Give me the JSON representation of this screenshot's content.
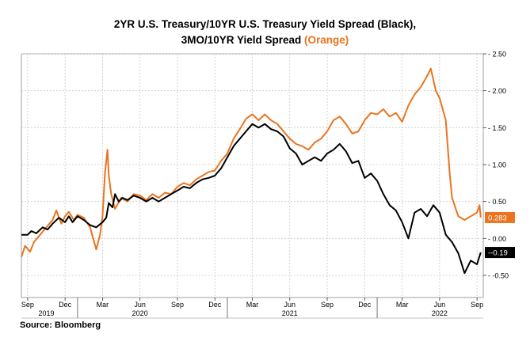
{
  "title": {
    "line1": "2YR U.S. Treasury/10YR U.S. Treasury Yield Spread (Black),",
    "line2_prefix": "3MO/10YR Yield Spread",
    "line2_highlight": "(Orange)"
  },
  "source": "Source: Bloomberg",
  "colors": {
    "series_black": "#000000",
    "series_orange": "#ea7420",
    "grid": "#c8c8c8",
    "label_orange_bg": "#ea7420",
    "label_black_bg": "#000000"
  },
  "chart_data": {
    "type": "line",
    "ylim": [
      -0.8,
      2.5
    ],
    "yticks": [
      2.5,
      2.0,
      1.5,
      1.0,
      0.5,
      0.0,
      -0.5
    ],
    "ytick_labels": [
      "2.50",
      "2.00",
      "1.50",
      "1.00",
      "0.50",
      "0.00",
      "-0.50"
    ],
    "x_month_ticks": [
      {
        "t": 0,
        "label": "Sep"
      },
      {
        "t": 3,
        "label": "Dec"
      },
      {
        "t": 6,
        "label": "Mar"
      },
      {
        "t": 9,
        "label": "Jun"
      },
      {
        "t": 12,
        "label": "Sep"
      },
      {
        "t": 15,
        "label": "Dec"
      },
      {
        "t": 18,
        "label": "Mar"
      },
      {
        "t": 21,
        "label": "Jun"
      },
      {
        "t": 24,
        "label": "Sep"
      },
      {
        "t": 27,
        "label": "Dec"
      },
      {
        "t": 30,
        "label": "Mar"
      },
      {
        "t": 33,
        "label": "Jun"
      },
      {
        "t": 36,
        "label": "Sep"
      }
    ],
    "x_year_labels": [
      {
        "t": 1.5,
        "label": "2019"
      },
      {
        "t": 9,
        "label": "2020"
      },
      {
        "t": 21,
        "label": "2021"
      },
      {
        "t": 33,
        "label": "2022"
      }
    ],
    "year_separators": [
      4,
      16,
      28
    ],
    "xlim": [
      -0.5,
      36.5
    ],
    "series": [
      {
        "name": "2YR U.S. Treasury/10YR U.S. Treasury Yield Spread",
        "color": "#000000",
        "last_value_label": "-0.19",
        "points": [
          [
            -0.5,
            0.05
          ],
          [
            0.0,
            0.05
          ],
          [
            0.3,
            0.1
          ],
          [
            0.7,
            0.07
          ],
          [
            1.2,
            0.15
          ],
          [
            1.6,
            0.12
          ],
          [
            2.0,
            0.2
          ],
          [
            2.5,
            0.28
          ],
          [
            3.0,
            0.22
          ],
          [
            3.3,
            0.3
          ],
          [
            3.6,
            0.22
          ],
          [
            4.0,
            0.3
          ],
          [
            4.5,
            0.25
          ],
          [
            5.0,
            0.18
          ],
          [
            5.5,
            0.15
          ],
          [
            6.0,
            0.22
          ],
          [
            6.3,
            0.28
          ],
          [
            6.5,
            0.48
          ],
          [
            6.8,
            0.42
          ],
          [
            7.0,
            0.6
          ],
          [
            7.3,
            0.5
          ],
          [
            7.6,
            0.55
          ],
          [
            8.0,
            0.52
          ],
          [
            8.5,
            0.58
          ],
          [
            9.0,
            0.55
          ],
          [
            9.5,
            0.5
          ],
          [
            10.0,
            0.55
          ],
          [
            10.5,
            0.5
          ],
          [
            11.0,
            0.55
          ],
          [
            11.5,
            0.6
          ],
          [
            12.0,
            0.65
          ],
          [
            12.5,
            0.7
          ],
          [
            13.0,
            0.68
          ],
          [
            13.5,
            0.75
          ],
          [
            14.0,
            0.8
          ],
          [
            14.5,
            0.82
          ],
          [
            15.0,
            0.85
          ],
          [
            15.5,
            0.95
          ],
          [
            16.0,
            1.1
          ],
          [
            16.5,
            1.25
          ],
          [
            17.0,
            1.35
          ],
          [
            17.5,
            1.45
          ],
          [
            18.0,
            1.55
          ],
          [
            18.5,
            1.5
          ],
          [
            19.0,
            1.55
          ],
          [
            19.5,
            1.48
          ],
          [
            20.0,
            1.45
          ],
          [
            20.5,
            1.38
          ],
          [
            21.0,
            1.22
          ],
          [
            21.5,
            1.15
          ],
          [
            22.0,
            1.0
          ],
          [
            22.5,
            1.05
          ],
          [
            23.0,
            1.1
          ],
          [
            23.5,
            1.05
          ],
          [
            24.0,
            1.15
          ],
          [
            24.5,
            1.2
          ],
          [
            25.0,
            1.28
          ],
          [
            25.5,
            1.18
          ],
          [
            26.0,
            1.02
          ],
          [
            26.5,
            1.05
          ],
          [
            27.0,
            0.82
          ],
          [
            27.5,
            0.88
          ],
          [
            28.0,
            0.78
          ],
          [
            28.5,
            0.6
          ],
          [
            29.0,
            0.45
          ],
          [
            29.5,
            0.38
          ],
          [
            30.0,
            0.22
          ],
          [
            30.5,
            0.0
          ],
          [
            31.0,
            0.35
          ],
          [
            31.5,
            0.4
          ],
          [
            32.0,
            0.3
          ],
          [
            32.5,
            0.45
          ],
          [
            33.0,
            0.35
          ],
          [
            33.5,
            0.05
          ],
          [
            34.0,
            -0.05
          ],
          [
            34.5,
            -0.2
          ],
          [
            35.0,
            -0.47
          ],
          [
            35.5,
            -0.3
          ],
          [
            36.0,
            -0.35
          ],
          [
            36.3,
            -0.19
          ]
        ]
      },
      {
        "name": "3MO/10YR Yield Spread",
        "color": "#ea7420",
        "last_value_label": "0.283",
        "points": [
          [
            -0.5,
            -0.25
          ],
          [
            -0.2,
            -0.1
          ],
          [
            0.2,
            -0.18
          ],
          [
            0.5,
            -0.05
          ],
          [
            1.0,
            0.05
          ],
          [
            1.5,
            0.15
          ],
          [
            2.0,
            0.25
          ],
          [
            2.3,
            0.38
          ],
          [
            2.7,
            0.2
          ],
          [
            3.0,
            0.3
          ],
          [
            3.3,
            0.36
          ],
          [
            3.7,
            0.25
          ],
          [
            4.0,
            0.32
          ],
          [
            4.5,
            0.28
          ],
          [
            5.0,
            0.15
          ],
          [
            5.5,
            -0.15
          ],
          [
            5.8,
            0.05
          ],
          [
            6.0,
            0.3
          ],
          [
            6.2,
            0.9
          ],
          [
            6.4,
            1.2
          ],
          [
            6.5,
            0.85
          ],
          [
            6.7,
            0.6
          ],
          [
            7.0,
            0.4
          ],
          [
            7.5,
            0.55
          ],
          [
            8.0,
            0.5
          ],
          [
            8.5,
            0.6
          ],
          [
            9.0,
            0.58
          ],
          [
            9.5,
            0.52
          ],
          [
            10.0,
            0.6
          ],
          [
            10.5,
            0.55
          ],
          [
            11.0,
            0.62
          ],
          [
            11.5,
            0.6
          ],
          [
            12.0,
            0.7
          ],
          [
            12.5,
            0.75
          ],
          [
            13.0,
            0.72
          ],
          [
            13.5,
            0.8
          ],
          [
            14.0,
            0.85
          ],
          [
            14.5,
            0.9
          ],
          [
            15.0,
            0.92
          ],
          [
            15.5,
            1.05
          ],
          [
            16.0,
            1.15
          ],
          [
            16.5,
            1.35
          ],
          [
            17.0,
            1.48
          ],
          [
            17.5,
            1.62
          ],
          [
            18.0,
            1.68
          ],
          [
            18.5,
            1.6
          ],
          [
            19.0,
            1.68
          ],
          [
            19.5,
            1.6
          ],
          [
            20.0,
            1.55
          ],
          [
            20.5,
            1.45
          ],
          [
            21.0,
            1.35
          ],
          [
            21.5,
            1.28
          ],
          [
            22.0,
            1.25
          ],
          [
            22.5,
            1.2
          ],
          [
            23.0,
            1.3
          ],
          [
            23.5,
            1.35
          ],
          [
            24.0,
            1.45
          ],
          [
            24.5,
            1.6
          ],
          [
            25.0,
            1.65
          ],
          [
            25.5,
            1.55
          ],
          [
            26.0,
            1.42
          ],
          [
            26.5,
            1.45
          ],
          [
            27.0,
            1.6
          ],
          [
            27.5,
            1.7
          ],
          [
            28.0,
            1.68
          ],
          [
            28.5,
            1.75
          ],
          [
            29.0,
            1.65
          ],
          [
            29.5,
            1.7
          ],
          [
            30.0,
            1.58
          ],
          [
            30.5,
            1.8
          ],
          [
            31.0,
            1.95
          ],
          [
            31.5,
            2.05
          ],
          [
            32.0,
            2.2
          ],
          [
            32.3,
            2.3
          ],
          [
            32.7,
            2.0
          ],
          [
            33.0,
            1.9
          ],
          [
            33.5,
            1.6
          ],
          [
            33.8,
            0.9
          ],
          [
            34.0,
            0.55
          ],
          [
            34.5,
            0.3
          ],
          [
            35.0,
            0.25
          ],
          [
            35.5,
            0.3
          ],
          [
            36.0,
            0.35
          ],
          [
            36.2,
            0.45
          ],
          [
            36.3,
            0.283
          ]
        ]
      }
    ]
  }
}
